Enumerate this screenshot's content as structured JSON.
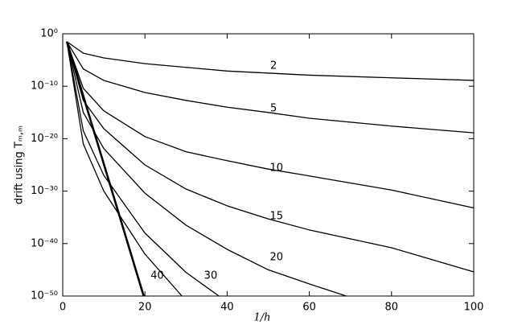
{
  "chart_data": {
    "type": "line",
    "xlabel": "1/h",
    "ylabel": "drift using Tₘ,ₘ",
    "xlim": [
      0,
      100
    ],
    "xticks": [
      0,
      20,
      40,
      60,
      80,
      100
    ],
    "ylim": [
      1e-50,
      1
    ],
    "log_y": true,
    "yticks": [
      {
        "value": 1,
        "label": "10⁰"
      },
      {
        "value": 1e-10,
        "label": "10⁻¹⁰"
      },
      {
        "value": 1e-20,
        "label": "10⁻²⁰"
      },
      {
        "value": 1e-30,
        "label": "10⁻³⁰"
      },
      {
        "value": 1e-40,
        "label": "10⁻⁴⁰"
      },
      {
        "value": 1e-50,
        "label": "10⁻⁵⁰"
      }
    ],
    "series": [
      {
        "color": "#000000",
        "linewidth": 1.3,
        "x": [
          1,
          5,
          10,
          20,
          40,
          60,
          80,
          100
        ],
        "values": [
          0.032,
          0.0002,
          2.5e-05,
          2e-06,
          7.9e-08,
          1.3e-08,
          4e-09,
          1.3e-09
        ]
      },
      {
        "color": "#000000",
        "linewidth": 1.3,
        "x": [
          1,
          5,
          10,
          20,
          30,
          40,
          50,
          60,
          80,
          100
        ],
        "values": [
          0.032,
          2e-07,
          1.3e-09,
          6.3e-12,
          2e-13,
          1e-14,
          1e-15,
          7.9e-17,
          2.5e-18,
          1.3e-19
        ]
      },
      {
        "color": "#000000",
        "linewidth": 1.3,
        "x": [
          1,
          5,
          10,
          20,
          30,
          40,
          50,
          60,
          80,
          100
        ],
        "values": [
          0.032,
          4e-11,
          2e-15,
          2.5e-20,
          3.2e-23,
          6.3e-25,
          1.6e-26,
          7.9e-28,
          1.6e-30,
          6.3e-34
        ]
      },
      {
        "color": "#000000",
        "linewidth": 1.3,
        "x": [
          1,
          5,
          10,
          20,
          30,
          40,
          50,
          60,
          80,
          100
        ],
        "values": [
          0.032,
          2e-13,
          7.9e-19,
          1e-25,
          2.5e-30,
          1.6e-33,
          5e-36,
          4e-38,
          1.6e-41,
          4e-46
        ]
      },
      {
        "color": "#000000",
        "linewidth": 1.3,
        "x": [
          1,
          5,
          10,
          20,
          30,
          40,
          50,
          60,
          69
        ],
        "values": [
          0.032,
          1e-15,
          1.3e-22,
          4e-31,
          3.2e-37,
          7.9e-42,
          1e-45,
          2e-48,
          1e-50
        ]
      },
      {
        "color": "#000000",
        "linewidth": 1.3,
        "x": [
          1,
          5,
          10,
          20,
          30,
          38
        ],
        "values": [
          0.032,
          3.2e-19,
          1e-27,
          1e-38,
          3.2e-46,
          1e-50
        ]
      },
      {
        "color": "#000000",
        "linewidth": 1.3,
        "x": [
          1,
          5,
          10,
          20,
          29
        ],
        "values": [
          0.032,
          1e-21,
          1e-30,
          1e-42,
          1e-50
        ]
      },
      {
        "color": "#000000",
        "linewidth": 2.6,
        "x": [
          1,
          19.7
        ],
        "values": [
          0.032,
          1e-50
        ]
      }
    ],
    "annotations": [
      {
        "text": "2",
        "x": 51.3,
        "y": 8e-07
      },
      {
        "text": "5",
        "x": 51.3,
        "y": 5e-15
      },
      {
        "text": "10",
        "x": 52,
        "y": 2.5e-26
      },
      {
        "text": "15",
        "x": 52,
        "y": 1.6e-35
      },
      {
        "text": "20",
        "x": 52,
        "y": 2.5e-43
      },
      {
        "text": "30",
        "x": 36,
        "y": 6.3e-47
      },
      {
        "text": "40",
        "x": 23,
        "y": 6.3e-47
      }
    ]
  }
}
